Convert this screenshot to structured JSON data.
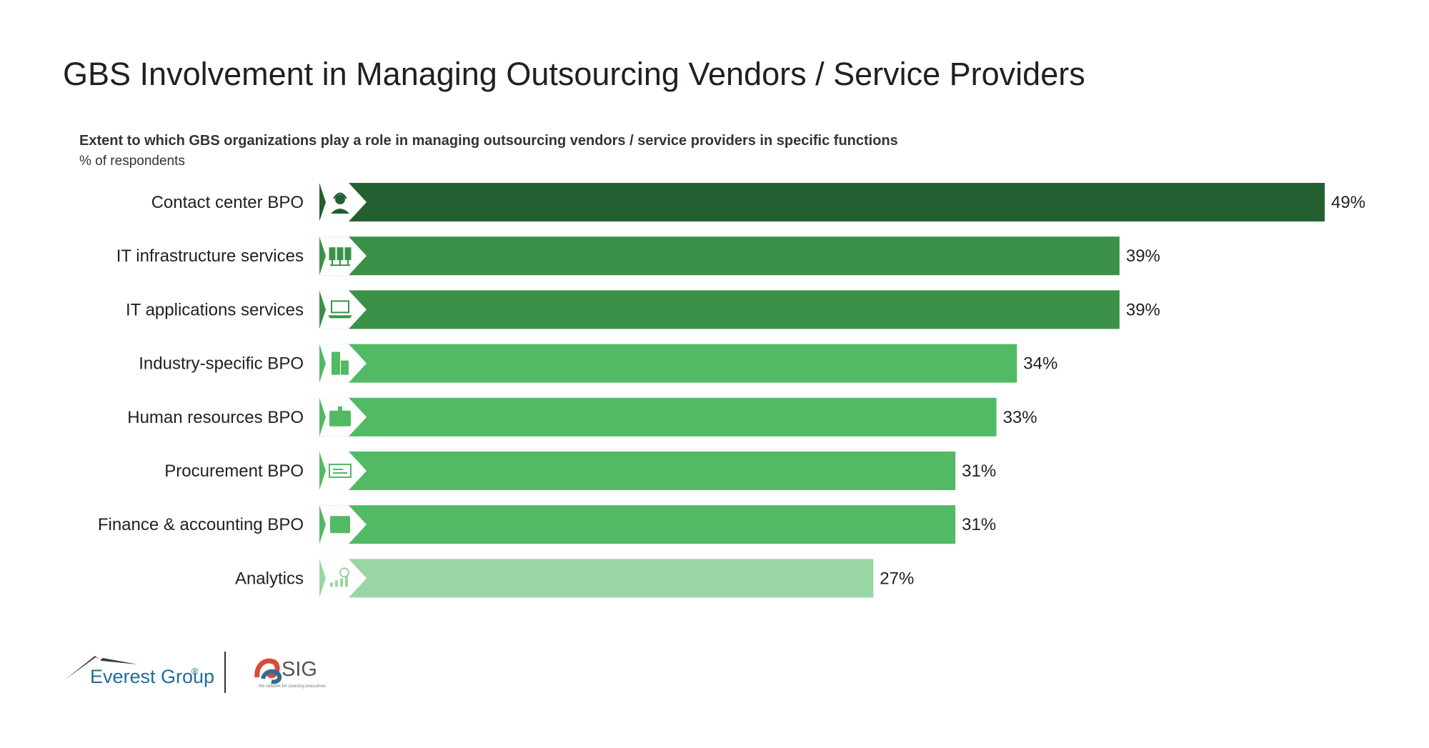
{
  "title": "GBS Involvement in Managing Outsourcing Vendors / Service Providers",
  "subtitle": "Extent to which GBS organizations play a role in managing outsourcing vendors / service providers in specific functions",
  "unit_note": "% of respondents",
  "chart_data": {
    "type": "bar",
    "orientation": "horizontal",
    "categories": [
      "Contact center BPO",
      "IT infrastructure services",
      "IT applications services",
      "Industry-specific BPO",
      "Human resources BPO",
      "Procurement BPO",
      "Finance & accounting BPO",
      "Analytics"
    ],
    "values": [
      49,
      39,
      39,
      34,
      33,
      31,
      31,
      27
    ],
    "value_labels": [
      "49%",
      "39%",
      "39%",
      "34%",
      "33%",
      "31%",
      "31%",
      "27%"
    ],
    "bar_colors": [
      "#245f32",
      "#3a9147",
      "#3a9147",
      "#52ba64",
      "#52ba64",
      "#52ba64",
      "#52ba64",
      "#98d6a4"
    ],
    "icons": [
      "headset-agent-icon",
      "server-rack-icon",
      "laptop-icon",
      "office-building-icon",
      "id-badge-icon",
      "check-document-icon",
      "ledger-book-icon",
      "analytics-chart-icon"
    ],
    "xlim": [
      0,
      49
    ],
    "grid": false,
    "legend": "none"
  },
  "footer": {
    "logo1": "Everest Group",
    "logo1_mark": "®",
    "logo2": "SIG",
    "logo2_tagline": "the network for sourcing executives"
  }
}
